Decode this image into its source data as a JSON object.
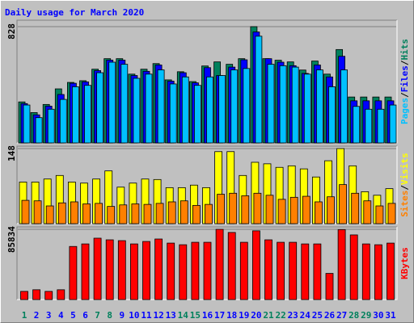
{
  "chart_data": [
    {
      "type": "bar",
      "title": "Daily usage for March 2020",
      "ylim": [
        0,
        828
      ],
      "yticks": [
        828
      ],
      "grid": true,
      "legend_separator": "/",
      "series": [
        {
          "name": "Hits",
          "color": "#00805c",
          "values": [
            292,
            216,
            274,
            385,
            431,
            443,
            525,
            600,
            600,
            490,
            525,
            565,
            449,
            507,
            437,
            548,
            577,
            560,
            600,
            828,
            600,
            589,
            577,
            519,
            583,
            490,
            665,
            327,
            327,
            327,
            327
          ]
        },
        {
          "name": "Files",
          "color": "#0000ff",
          "values": [
            280,
            200,
            262,
            345,
            425,
            435,
            515,
            590,
            590,
            480,
            510,
            555,
            440,
            500,
            428,
            536,
            480,
            540,
            592,
            790,
            600,
            575,
            550,
            495,
            555,
            470,
            617,
            300,
            300,
            300,
            300
          ]
        },
        {
          "name": "Pages",
          "color": "#00c0ff",
          "values": [
            270,
            180,
            240,
            310,
            400,
            410,
            500,
            575,
            560,
            460,
            490,
            520,
            420,
            470,
            410,
            470,
            480,
            520,
            530,
            760,
            560,
            550,
            540,
            490,
            520,
            400,
            520,
            260,
            240,
            240,
            270
          ]
        }
      ]
    },
    {
      "type": "bar",
      "ylim": [
        0,
        148
      ],
      "yticks": [
        148
      ],
      "grid": true,
      "series": [
        {
          "name": "Visits",
          "color": "#ffff00",
          "values": [
            82,
            82,
            88,
            95,
            82,
            80,
            88,
            104,
            72,
            80,
            88,
            87,
            71,
            71,
            76,
            71,
            142,
            142,
            95,
            121,
            118,
            111,
            114,
            108,
            92,
            124,
            148,
            114,
            63,
            56,
            69
          ]
        },
        {
          "name": "Sites",
          "color": "#ff8000",
          "values": [
            46,
            45,
            35,
            41,
            43,
            39,
            40,
            34,
            37,
            39,
            38,
            40,
            43,
            45,
            36,
            38,
            58,
            60,
            55,
            60,
            56,
            48,
            52,
            54,
            43,
            53,
            77,
            60,
            45,
            35,
            40
          ]
        }
      ]
    },
    {
      "type": "bar",
      "ylim": [
        0,
        85834
      ],
      "yticks": [
        85834
      ],
      "grid": true,
      "categories": [
        "1",
        "2",
        "3",
        "4",
        "5",
        "6",
        "7",
        "8",
        "9",
        "10",
        "11",
        "12",
        "13",
        "14",
        "15",
        "16",
        "17",
        "18",
        "19",
        "20",
        "21",
        "22",
        "23",
        "24",
        "25",
        "26",
        "27",
        "28",
        "29",
        "30",
        "31"
      ],
      "category_colors": [
        "#00805c",
        "#0000ff",
        "#0000ff",
        "#0000ff",
        "#0000ff",
        "#0000ff",
        "#00805c",
        "#00805c",
        "#0000ff",
        "#0000ff",
        "#0000ff",
        "#0000ff",
        "#0000ff",
        "#00805c",
        "#00805c",
        "#0000ff",
        "#0000ff",
        "#0000ff",
        "#0000ff",
        "#0000ff",
        "#00805c",
        "#00805c",
        "#0000ff",
        "#0000ff",
        "#0000ff",
        "#0000ff",
        "#0000ff",
        "#00805c",
        "#00805c",
        "#0000ff",
        "#0000ff"
      ],
      "series": [
        {
          "name": "KBytes",
          "color": "#ff0000",
          "values": [
            10000,
            12000,
            10000,
            12000,
            64900,
            68000,
            75000,
            73000,
            72000,
            68000,
            71000,
            74000,
            69000,
            67000,
            70000,
            70000,
            85834,
            82000,
            70000,
            84000,
            73000,
            70000,
            70000,
            68000,
            68000,
            32000,
            85500,
            79000,
            68000,
            67000,
            69000
          ]
        }
      ]
    }
  ]
}
